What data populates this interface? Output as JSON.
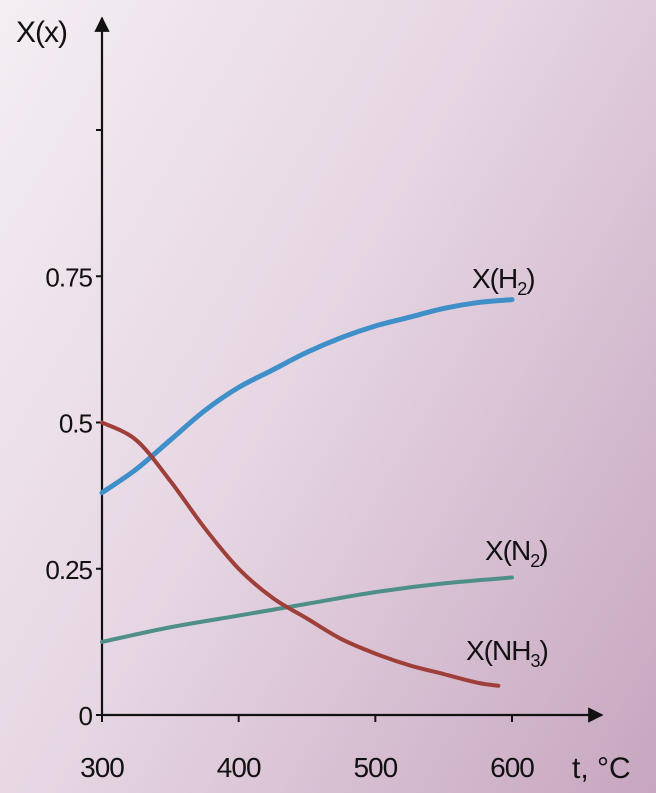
{
  "chart_data": {
    "type": "line",
    "ylabel": "X(x)",
    "xlabel": "t, °C",
    "xlim": [
      300,
      600
    ],
    "ylim": [
      0,
      1
    ],
    "x_ticks": [
      300,
      400,
      500,
      600
    ],
    "y_ticks": [
      {
        "value": 0,
        "label": "0"
      },
      {
        "value": 0.25,
        "label": "0.25"
      },
      {
        "value": 0.5,
        "label": "0.5"
      },
      {
        "value": 0.75,
        "label": "0.75"
      },
      {
        "value": 1.0,
        "label": ""
      }
    ],
    "grid": false,
    "series": [
      {
        "name": "X(H₂)",
        "label_main": "X(H",
        "label_sub": "2",
        "label_tail": ")",
        "color": "#3f8fc9",
        "x": [
          300,
          325,
          350,
          375,
          400,
          425,
          450,
          475,
          500,
          525,
          550,
          575,
          600
        ],
        "y": [
          0.38,
          0.42,
          0.47,
          0.52,
          0.56,
          0.59,
          0.62,
          0.645,
          0.665,
          0.68,
          0.695,
          0.705,
          0.71
        ]
      },
      {
        "name": "X(N₂)",
        "label_main": "X(N",
        "label_sub": "2",
        "label_tail": ")",
        "color": "#4f8f8a",
        "x": [
          300,
          350,
          400,
          450,
          500,
          550,
          600
        ],
        "y": [
          0.125,
          0.15,
          0.17,
          0.19,
          0.21,
          0.225,
          0.235
        ]
      },
      {
        "name": "X(NH₃)",
        "label_main": "X(NH",
        "label_sub": "3",
        "label_tail": ")",
        "color": "#9e3f3a",
        "x": [
          300,
          325,
          350,
          375,
          400,
          425,
          450,
          475,
          500,
          525,
          550,
          575,
          590
        ],
        "y": [
          0.5,
          0.47,
          0.4,
          0.32,
          0.25,
          0.2,
          0.165,
          0.13,
          0.105,
          0.085,
          0.07,
          0.055,
          0.05
        ]
      }
    ]
  }
}
